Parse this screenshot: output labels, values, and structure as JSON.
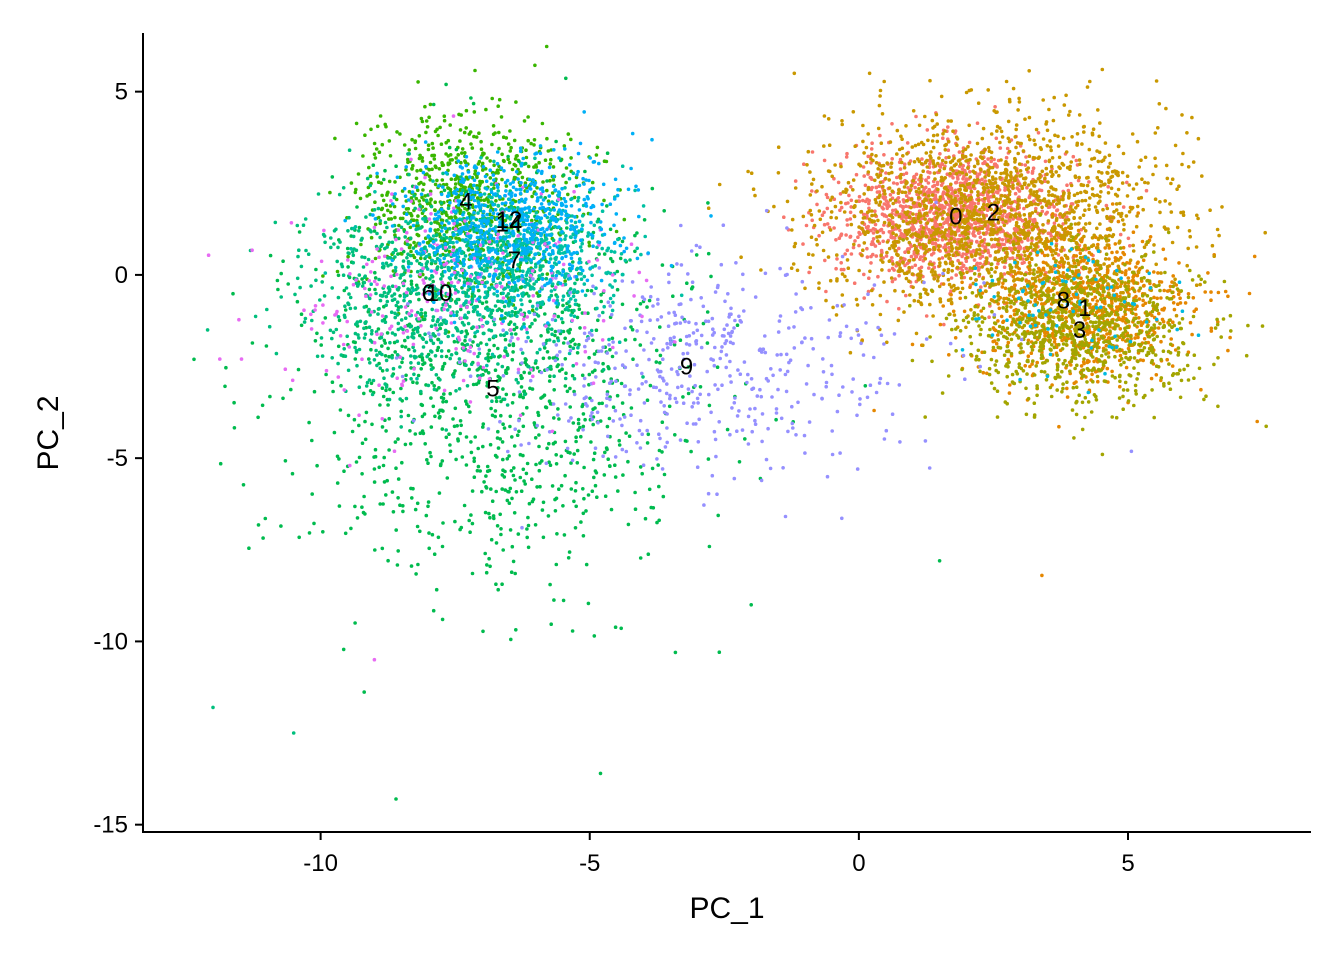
{
  "chart_data": {
    "type": "scatter",
    "title": "",
    "xlabel": "PC_1",
    "ylabel": "PC_2",
    "xlim": [
      -13.3,
      8.4
    ],
    "ylim": [
      -15.2,
      6.6
    ],
    "grid": false,
    "legend": "none",
    "x_ticks": [
      {
        "value": -10,
        "label": "-10"
      },
      {
        "value": -5,
        "label": "-5"
      },
      {
        "value": 0,
        "label": "0"
      },
      {
        "value": 5,
        "label": "5"
      }
    ],
    "y_ticks": [
      {
        "value": 5,
        "label": "5"
      },
      {
        "value": 0,
        "label": "0"
      },
      {
        "value": -5,
        "label": "-5"
      },
      {
        "value": -10,
        "label": "-10"
      },
      {
        "value": -15,
        "label": "-15"
      }
    ],
    "clusters": [
      {
        "label": "0",
        "color": "#F8766D",
        "center": [
          1.8,
          1.6
        ],
        "spread": [
          1.1,
          0.9
        ]
      },
      {
        "label": "1",
        "color": "#E58700",
        "center": [
          4.2,
          -0.9
        ],
        "spread": [
          1.0,
          1.0
        ]
      },
      {
        "label": "2",
        "color": "#C99800",
        "center": [
          2.5,
          1.7
        ],
        "spread": [
          1.6,
          1.3
        ]
      },
      {
        "label": "3",
        "color": "#A3A500",
        "center": [
          4.1,
          -1.5
        ],
        "spread": [
          1.1,
          1.0
        ]
      },
      {
        "label": "4",
        "color": "#39B600",
        "center": [
          -7.3,
          2.0
        ],
        "spread": [
          1.0,
          1.2
        ]
      },
      {
        "label": "5",
        "color": "#00BB4E",
        "center": [
          -6.8,
          -3.1
        ],
        "spread": [
          1.9,
          2.6
        ]
      },
      {
        "label": "6",
        "color": "#00BF7D",
        "center": [
          -8.0,
          -0.5
        ],
        "spread": [
          1.2,
          1.3
        ]
      },
      {
        "label": "7",
        "color": "#00C1A3",
        "center": [
          -6.4,
          0.4
        ],
        "spread": [
          1.0,
          1.0
        ]
      },
      {
        "label": "8",
        "color": "#00BAE0",
        "center": [
          3.8,
          -0.7
        ],
        "spread": [
          1.0,
          0.9
        ]
      },
      {
        "label": "9",
        "color": "#9590FF",
        "center": [
          -3.2,
          -2.5
        ],
        "spread": [
          2.2,
          1.5
        ]
      },
      {
        "label": "10",
        "color": "#E76BF3",
        "center": [
          -7.8,
          -0.5
        ],
        "spread": [
          1.5,
          1.6
        ]
      },
      {
        "label": "12",
        "color": "#00A9FF",
        "center": [
          -6.5,
          1.5
        ],
        "spread": [
          1.0,
          1.0
        ]
      },
      {
        "label": "14",
        "color": "#00B0F6",
        "center": [
          -6.5,
          1.4
        ],
        "spread": [
          1.0,
          1.0
        ]
      }
    ],
    "point_color": [
      {
        "x": -12.1,
        "y": -1.5,
        "color": "#00BF7D"
      },
      {
        "x": -12.0,
        "y": -11.8,
        "color": "#00BF7D"
      },
      {
        "x": -10.5,
        "y": -12.5,
        "color": "#00BF7D"
      },
      {
        "x": -8.6,
        "y": -14.3,
        "color": "#00BB4E"
      },
      {
        "x": -4.8,
        "y": -13.6,
        "color": "#00BB4E"
      },
      {
        "x": -1.2,
        "y": 5.5,
        "color": "#C99800"
      },
      {
        "x": 0.2,
        "y": 5.5,
        "color": "#C99800"
      },
      {
        "x": 7.4,
        "y": -4.0,
        "color": "#E58700"
      },
      {
        "x": 3.4,
        "y": -8.2,
        "color": "#E58700"
      },
      {
        "x": 1.5,
        "y": -7.8,
        "color": "#00BB4E"
      },
      {
        "x": -2.0,
        "y": -9.0,
        "color": "#00BB4E"
      },
      {
        "x": -9.0,
        "y": -10.5,
        "color": "#E76BF3"
      }
    ]
  }
}
